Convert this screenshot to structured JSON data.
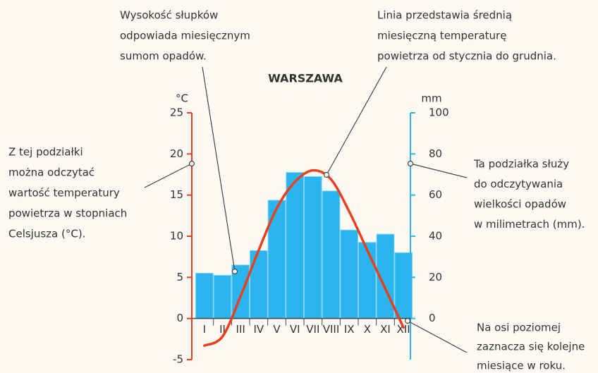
{
  "chart_data": {
    "type": "climate",
    "title": "WARSZAWA",
    "y_label": "°C",
    "y2_label": "mm",
    "categories": [
      "I",
      "II",
      "III",
      "IV",
      "V",
      "VI",
      "VII",
      "VIII",
      "IX",
      "X",
      "XI",
      "XII"
    ],
    "series": [
      {
        "name": "opady",
        "kind": "bar",
        "axis": "y2",
        "color": "#2bb5ee",
        "values": [
          22,
          21,
          26,
          33,
          57.5,
          71,
          69,
          62,
          43,
          37,
          41,
          32
        ]
      },
      {
        "name": "temperatura",
        "kind": "line",
        "axis": "y",
        "color": "#e8401f",
        "values": [
          -3.3,
          -2.2,
          2.7,
          8.3,
          13.4,
          16.6,
          18,
          16.9,
          13,
          8.3,
          3.6,
          -1.1
        ]
      }
    ],
    "ylim": [
      -5,
      25
    ],
    "yticks": [
      -5,
      0,
      5,
      10,
      15,
      20,
      25
    ],
    "y2lim": [
      -20,
      100
    ],
    "y2ticks": [
      0,
      20,
      40,
      60,
      80,
      100
    ],
    "y_color": "#e8401f",
    "y2_color": "#2bb5ee",
    "annotations": [
      {
        "lines": [
          "Wysokość słupków",
          "odpowiada miesięcznym",
          "sumom opadów."
        ]
      },
      {
        "lines": [
          "Linia przedstawia średnią",
          "miesięczną temperaturę",
          "powietrza od stycznia do grudnia."
        ]
      },
      {
        "lines": [
          "Z tej podziałki",
          "można odczytać",
          "wartość temperatury",
          "powietrza w stopniach",
          "Celsjusza (°C)."
        ]
      },
      {
        "lines": [
          "Ta podziałka służy",
          "do odczytywania",
          "wielkości opadów",
          "w milimetrach (mm)."
        ]
      },
      {
        "lines": [
          "Na osi poziomej",
          "zaznacza się kolejne",
          "miesiące w roku."
        ]
      }
    ]
  }
}
